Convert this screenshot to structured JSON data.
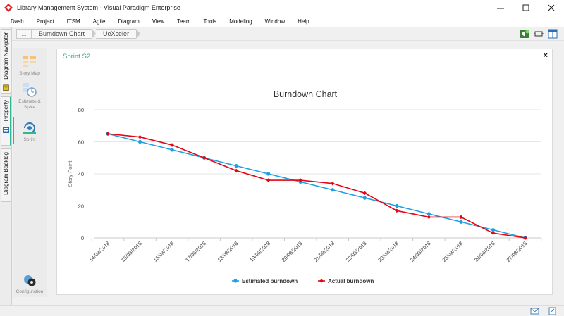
{
  "window": {
    "title": "Library Management System - Visual Paradigm Enterprise",
    "controls": [
      "minimize-icon",
      "maximize-icon",
      "close-icon"
    ]
  },
  "menu": [
    "Dash",
    "Project",
    "ITSM",
    "Agile",
    "Diagram",
    "View",
    "Team",
    "Tools",
    "Modeling",
    "Window",
    "Help"
  ],
  "breadcrumb": {
    "more_label": "...",
    "items": [
      "Burndown Chart",
      "UeXceler"
    ]
  },
  "side_tabs": [
    "Diagram Navigator",
    "Property",
    "Diagram Backlog"
  ],
  "tools": {
    "story_map": "Story Map",
    "estimate_spike": "Estimate & Spike",
    "sprint": "Sprint",
    "configuration": "Configuration"
  },
  "card": {
    "title": "Sprint S2",
    "close_glyph": "×"
  },
  "colors": {
    "accent": "#2eb891",
    "estimated": "#1da1e2",
    "actual": "#e30613"
  },
  "chart_data": {
    "type": "line",
    "title": "Burndown Chart",
    "xlabel": "",
    "ylabel": "Story Point",
    "ylim": [
      0,
      80
    ],
    "yticks": [
      0,
      20,
      40,
      60,
      80
    ],
    "grid": true,
    "legend_position": "bottom",
    "x": [
      "14/08/2018",
      "15/08/2018",
      "16/08/2018",
      "17/08/2018",
      "18/08/2018",
      "19/08/2018",
      "20/08/2018",
      "21/08/2018",
      "22/08/2018",
      "23/08/2018",
      "24/08/2018",
      "25/08/2018",
      "26/08/2018",
      "27/08/2018"
    ],
    "series": [
      {
        "name": "Estimated burndown",
        "color": "#1da1e2",
        "values": [
          65,
          60,
          55,
          50,
          45,
          40,
          35,
          30,
          25,
          20,
          15,
          10,
          5,
          0
        ]
      },
      {
        "name": "Actual burndown",
        "color": "#e30613",
        "values": [
          65,
          63,
          58,
          50,
          42,
          36,
          36,
          34,
          28,
          17,
          13,
          13,
          3,
          0
        ]
      }
    ]
  }
}
